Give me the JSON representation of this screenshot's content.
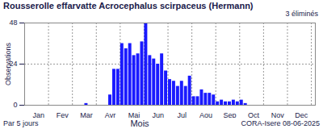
{
  "chart_data": {
    "type": "bar",
    "title": "Rousserolle effarvatte  Acrocephalus scirpaceus (Hermann)",
    "subtitle": "3 éliminés",
    "x_label": "Mois",
    "y_label": "Observations",
    "annotations": [
      "Par 5 jours",
      "CORA-Isere 08-06-2025"
    ],
    "categories": [
      null,
      null,
      null,
      "Jan",
      null,
      null,
      null,
      null,
      null,
      "Fev",
      null,
      null,
      null,
      null,
      null,
      "Mar",
      null,
      null,
      null,
      null,
      null,
      "Avr",
      null,
      null,
      null,
      null,
      null,
      "Mai",
      null,
      null,
      null,
      null,
      null,
      "Jun",
      null,
      null,
      null,
      null,
      null,
      "Jul",
      null,
      null,
      null,
      null,
      null,
      "Aou",
      null,
      null,
      null,
      null,
      null,
      "Sep",
      null,
      null,
      null,
      null,
      null,
      "Oct",
      null,
      null,
      null,
      null,
      null,
      "Nov",
      null,
      null,
      null,
      null,
      null,
      "Dec",
      null,
      null,
      null
    ],
    "values": [
      0,
      0,
      0,
      0,
      0,
      0,
      0,
      0,
      0,
      0,
      0,
      0,
      0,
      0,
      0,
      1,
      0,
      0,
      0,
      0,
      0,
      6,
      21,
      21,
      36,
      33,
      36,
      29,
      30,
      37,
      48,
      29,
      27,
      24,
      30,
      20,
      15,
      14,
      11,
      14,
      11,
      17,
      5,
      5,
      9,
      7,
      7,
      6,
      2,
      3,
      2,
      2,
      3,
      2,
      3,
      1,
      0,
      0,
      0,
      0,
      0,
      0,
      0,
      0,
      0,
      0,
      0,
      0,
      0,
      0,
      0,
      0,
      0
    ],
    "color": "#1a1aff",
    "ylim": [
      0,
      48
    ],
    "yticks": [
      0,
      24,
      48
    ],
    "grid": true
  }
}
